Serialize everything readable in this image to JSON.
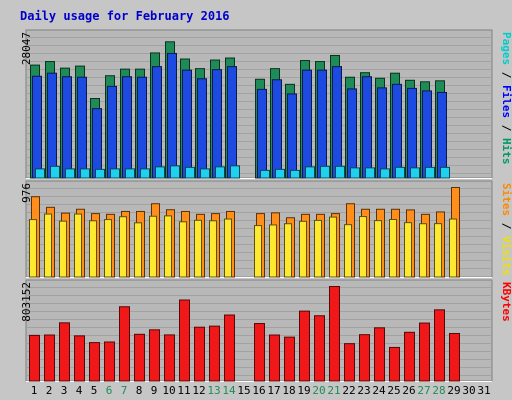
{
  "chart_data": {
    "type": "bar",
    "title": "Daily usage for February 2016",
    "days": [
      "1",
      "2",
      "3",
      "4",
      "5",
      "6",
      "7",
      "8",
      "9",
      "10",
      "11",
      "12",
      "13",
      "14",
      "15",
      "16",
      "17",
      "18",
      "19",
      "20",
      "21",
      "22",
      "23",
      "24",
      "25",
      "26",
      "27",
      "28",
      "29",
      "30",
      "31"
    ],
    "weekend_days": [
      "6",
      "7",
      "13",
      "14",
      "20",
      "21",
      "27",
      "28"
    ],
    "panels": [
      {
        "id": "top",
        "max_label": "28047",
        "max_value": 28047,
        "right_label": [
          {
            "text": "Pages",
            "color": "#00cccc"
          },
          {
            "text": " / ",
            "color": "#000000"
          },
          {
            "text": "Files",
            "color": "#0000ff"
          },
          {
            "text": " / ",
            "color": "#000000"
          },
          {
            "text": "Hits",
            "color": "#009966"
          }
        ],
        "series": [
          {
            "name": "Hits",
            "color": "#1f8c58",
            "values": [
              22400,
              23100,
              21800,
              22200,
              15800,
              20300,
              21600,
              21600,
              24800,
              27000,
              23600,
              21700,
              23400,
              23800,
              null,
              19600,
              21700,
              18600,
              23300,
              23100,
              24300,
              20000,
              20900,
              19800,
              20800,
              19400,
              19100,
              19300,
              null,
              null,
              null
            ]
          },
          {
            "name": "Files",
            "color": "#1d4ae0",
            "values": [
              20200,
              20800,
              20100,
              20000,
              13800,
              18200,
              20100,
              20000,
              22100,
              24700,
              21400,
              19700,
              21500,
              22100,
              null,
              17600,
              19500,
              16700,
              21400,
              21400,
              22100,
              17700,
              20100,
              17900,
              18600,
              17800,
              17300,
              17000,
              null,
              null,
              null
            ]
          },
          {
            "name": "Pages",
            "color": "#1fd0f0",
            "values": [
              1900,
              2400,
              1900,
              1900,
              1800,
              1900,
              1900,
              1900,
              2300,
              2500,
              2200,
              1900,
              2300,
              2500,
              null,
              1600,
              1800,
              1600,
              2300,
              2400,
              2400,
              2100,
              2100,
              1900,
              2200,
              2100,
              2200,
              2200,
              null,
              null,
              null
            ]
          }
        ]
      },
      {
        "id": "middle",
        "max_label": "976",
        "max_value": 976,
        "right_label": [
          {
            "text": "Sites",
            "color": "#ff8800"
          },
          {
            "text": " / ",
            "color": "#000000"
          },
          {
            "text": "Visits",
            "color": "#f0e000"
          }
        ],
        "series": [
          {
            "name": "Sites",
            "color": "#ff8e1a",
            "values": [
              876,
              761,
              698,
              740,
              693,
              685,
              716,
              716,
              800,
              735,
              716,
              685,
              693,
              716,
              null,
              693,
              701,
              648,
              685,
              685,
              693,
              800,
              740,
              740,
              740,
              733,
              685,
              711,
              976,
              null,
              null
            ]
          },
          {
            "name": "Visits",
            "color": "#ffe830",
            "values": [
              628,
              688,
              611,
              688,
              615,
              628,
              659,
              593,
              664,
              668,
              604,
              620,
              615,
              634,
              null,
              563,
              570,
              583,
              609,
              619,
              655,
              573,
              661,
              617,
              629,
              595,
              583,
              584,
              634,
              null,
              null
            ]
          }
        ]
      },
      {
        "id": "bottom",
        "max_label": "803152",
        "max_value": 803152,
        "right_label": [
          {
            "text": "KBytes",
            "color": "#ff0000"
          }
        ],
        "series": [
          {
            "name": "KBytes",
            "color": "#f01818",
            "values": [
              390000,
              393000,
              496000,
              386000,
              329000,
              334000,
              632000,
              399000,
              437000,
              394000,
              689000,
              459000,
              468000,
              562000,
              null,
              490000,
              393000,
              375000,
              595000,
              556000,
              803152,
              320000,
              396000,
              454000,
              288000,
              416000,
              494000,
              606000,
              406000,
              null,
              null
            ]
          }
        ]
      }
    ]
  }
}
